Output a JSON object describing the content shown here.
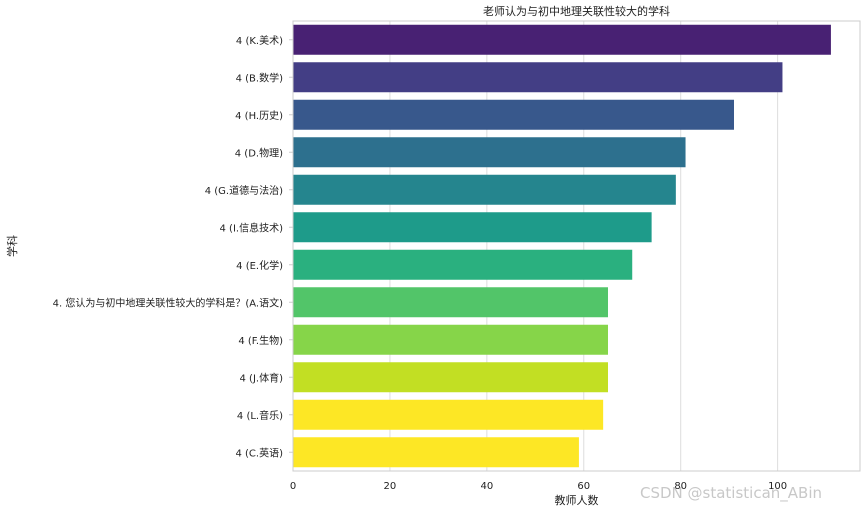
{
  "chart_data": {
    "type": "bar",
    "orientation": "horizontal",
    "title": "老师认为与初中地理关联性较大的学科",
    "xlabel": "教师人数",
    "ylabel": "学科",
    "xlim": [
      0,
      117
    ],
    "xticks": [
      0,
      20,
      40,
      60,
      80,
      100
    ],
    "grid": true,
    "categories": [
      "4 (K.美术)",
      "4 (B.数学)",
      "4 (H.历史)",
      "4 (D.物理)",
      "4 (G.道德与法治)",
      "4 (I.信息技术)",
      "4 (E.化学)",
      "4. 您认为与初中地理关联性较大的学科是？(A.语文)",
      "4 (F.生物)",
      "4 (J.体育)",
      "4 (L.音乐)",
      "4 (C.英语)"
    ],
    "values": [
      111,
      101,
      91,
      81,
      79,
      74,
      70,
      65,
      65,
      65,
      64,
      59
    ],
    "colors": [
      "#482173",
      "#433e85",
      "#38588c",
      "#2d708e",
      "#25858e",
      "#1e9b8a",
      "#2ab07f",
      "#52c569",
      "#86d549",
      "#c2df23",
      "#fde725",
      "#fde725"
    ]
  },
  "watermark": "CSDN @statistican_ABin"
}
